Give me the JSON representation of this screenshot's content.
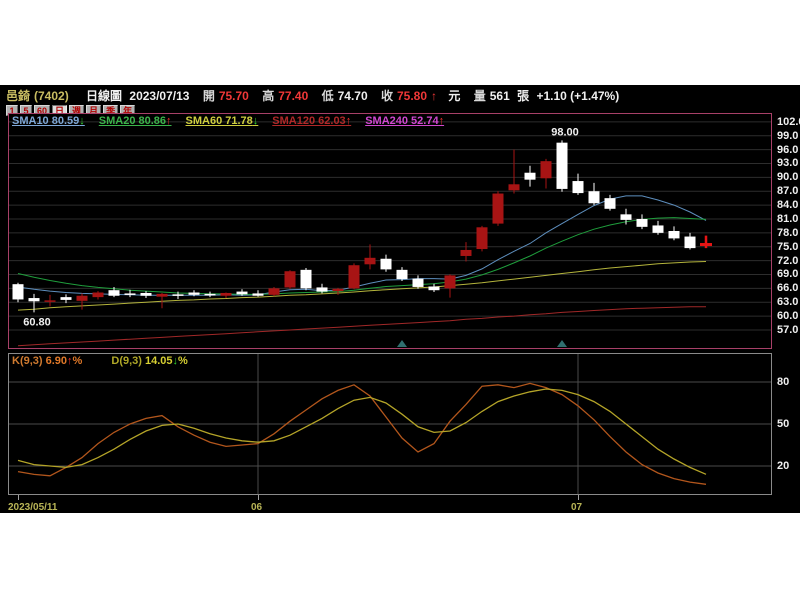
{
  "header": {
    "stock_name": "邑錡",
    "stock_code": "(7402)",
    "chart_type": "日線圖",
    "date": "2023/07/13",
    "open_label": "開",
    "open": "75.70",
    "high_label": "高",
    "high": "77.40",
    "low_label": "低",
    "low": "74.70",
    "close_label": "收",
    "close": "75.80",
    "close_arrow": "↑",
    "unit": "元",
    "volume_label": "量",
    "volume": "561",
    "volume_unit": "張",
    "change": "+1.10 (+1.47%)"
  },
  "toolbar": {
    "buttons": [
      "1",
      "5",
      "60",
      "日",
      "週",
      "月",
      "季",
      "年"
    ],
    "selected": "日"
  },
  "sma_legend": [
    {
      "label": "SMA10",
      "value": "80.59",
      "arrow": "↓",
      "color": "#7fa8d8",
      "arrow_color": "#30d030"
    },
    {
      "label": "SMA20",
      "value": "80.86",
      "arrow": "↑",
      "color": "#3cb44b",
      "arrow_color": "#f03030"
    },
    {
      "label": "SMA60",
      "value": "71.78",
      "arrow": "↓",
      "color": "#cfcf3f",
      "arrow_color": "#30d030"
    },
    {
      "label": "SMA120",
      "value": "62.03",
      "arrow": "↑",
      "color": "#b02828",
      "arrow_color": "#f03030"
    },
    {
      "label": "SMA240",
      "value": "52.74",
      "arrow": "↑",
      "color": "#d048d0",
      "arrow_color": "#f03030"
    }
  ],
  "kd_legend": {
    "k_label": "K(9,3)",
    "k_value": "6.90",
    "k_arrow": "↑",
    "k_pct": "%",
    "k_label_color": "#cf7a2f",
    "k_value_color": "#e07828",
    "d_label": "D(9,3)",
    "d_value": "14.05",
    "d_arrow": "↓",
    "d_pct": "%",
    "d_label_color": "#b0a828",
    "d_value_color": "#d6cf32"
  },
  "chart_data": [
    {
      "type": "candlestick",
      "title": "邑錡(7402) 日線圖",
      "ylim": [
        53.1,
        103.7
      ],
      "yticks": [
        102,
        99,
        96,
        93,
        90,
        87,
        84,
        81,
        78,
        75,
        72,
        69,
        66,
        63,
        60,
        57
      ],
      "grid_color": "#2d2d2d",
      "border_color": "#a84068",
      "candle_up_color": "#a81414",
      "candle_down_color": "#ffffff",
      "today_color": "#e61414",
      "marker_color": "#2f6f6f",
      "x_axis_labels": [
        {
          "label": "2023/05/11",
          "index": 0
        },
        {
          "label": "06",
          "index": 15
        },
        {
          "label": "07",
          "index": 35
        }
      ],
      "annotations": [
        {
          "text": "60.80",
          "index": 1,
          "price": 60.8,
          "pos": "below"
        },
        {
          "text": "98.00",
          "index": 34,
          "price": 98.0,
          "pos": "above"
        }
      ],
      "markers": [
        {
          "index": 24
        },
        {
          "index": 34
        }
      ],
      "candles": [
        {
          "date": "05/11",
          "o": 66.9,
          "h": 67.2,
          "l": 63.0,
          "c": 63.6
        },
        {
          "date": "05/12",
          "o": 63.9,
          "h": 64.8,
          "l": 60.8,
          "c": 63.2
        },
        {
          "date": "05/15",
          "o": 63.4,
          "h": 64.6,
          "l": 62.1,
          "c": 63.4
        },
        {
          "date": "05/16",
          "o": 64.1,
          "h": 64.7,
          "l": 62.8,
          "c": 63.5
        },
        {
          "date": "05/17",
          "o": 63.3,
          "h": 64.9,
          "l": 61.4,
          "c": 64.4
        },
        {
          "date": "05/18",
          "o": 64.1,
          "h": 65.4,
          "l": 63.6,
          "c": 65.1
        },
        {
          "date": "05/19",
          "o": 65.6,
          "h": 66.3,
          "l": 64.1,
          "c": 64.4
        },
        {
          "date": "05/22",
          "o": 64.9,
          "h": 65.7,
          "l": 64.1,
          "c": 64.7
        },
        {
          "date": "05/23",
          "o": 65.0,
          "h": 65.4,
          "l": 63.9,
          "c": 64.4
        },
        {
          "date": "05/24",
          "o": 64.2,
          "h": 65.0,
          "l": 61.7,
          "c": 64.8
        },
        {
          "date": "05/25",
          "o": 64.7,
          "h": 65.3,
          "l": 63.7,
          "c": 64.4
        },
        {
          "date": "05/26",
          "o": 65.1,
          "h": 65.6,
          "l": 64.3,
          "c": 64.6
        },
        {
          "date": "05/29",
          "o": 64.8,
          "h": 65.3,
          "l": 64.1,
          "c": 64.7
        },
        {
          "date": "05/30",
          "o": 64.4,
          "h": 65.1,
          "l": 63.9,
          "c": 65.0
        },
        {
          "date": "05/31",
          "o": 65.3,
          "h": 65.8,
          "l": 64.4,
          "c": 64.7
        },
        {
          "date": "06/01",
          "o": 64.9,
          "h": 65.6,
          "l": 64.2,
          "c": 64.4
        },
        {
          "date": "06/02",
          "o": 64.6,
          "h": 66.3,
          "l": 64.3,
          "c": 66.0
        },
        {
          "date": "06/05",
          "o": 66.2,
          "h": 69.9,
          "l": 65.9,
          "c": 69.7
        },
        {
          "date": "06/06",
          "o": 70.0,
          "h": 70.4,
          "l": 65.6,
          "c": 66.0
        },
        {
          "date": "06/07",
          "o": 66.2,
          "h": 67.0,
          "l": 64.9,
          "c": 65.3
        },
        {
          "date": "06/08",
          "o": 65.4,
          "h": 66.1,
          "l": 64.6,
          "c": 65.9
        },
        {
          "date": "06/09",
          "o": 66.0,
          "h": 71.4,
          "l": 65.8,
          "c": 71.0
        },
        {
          "date": "06/12",
          "o": 71.2,
          "h": 75.5,
          "l": 70.1,
          "c": 72.6
        },
        {
          "date": "06/13",
          "o": 72.4,
          "h": 73.3,
          "l": 69.6,
          "c": 70.1
        },
        {
          "date": "06/14",
          "o": 70.0,
          "h": 70.6,
          "l": 67.6,
          "c": 68.0
        },
        {
          "date": "06/15",
          "o": 68.1,
          "h": 68.8,
          "l": 65.9,
          "c": 66.3
        },
        {
          "date": "06/16",
          "o": 66.4,
          "h": 67.0,
          "l": 65.2,
          "c": 65.6
        },
        {
          "date": "06/19",
          "o": 66.0,
          "h": 69.0,
          "l": 64.0,
          "c": 68.8
        },
        {
          "date": "06/20",
          "o": 73.0,
          "h": 76.0,
          "l": 71.8,
          "c": 74.3
        },
        {
          "date": "06/21",
          "o": 74.5,
          "h": 79.5,
          "l": 74.0,
          "c": 79.2
        },
        {
          "date": "06/26",
          "o": 80.0,
          "h": 87.0,
          "l": 79.5,
          "c": 86.5
        },
        {
          "date": "06/27",
          "o": 87.2,
          "h": 96.0,
          "l": 86.5,
          "c": 88.5
        },
        {
          "date": "06/28",
          "o": 91.0,
          "h": 92.5,
          "l": 88.0,
          "c": 89.5
        },
        {
          "date": "06/29",
          "o": 89.8,
          "h": 94.0,
          "l": 87.6,
          "c": 93.5
        },
        {
          "date": "06/30",
          "o": 97.5,
          "h": 98.0,
          "l": 86.9,
          "c": 87.5
        },
        {
          "date": "07/03",
          "o": 89.2,
          "h": 90.8,
          "l": 86.2,
          "c": 86.6
        },
        {
          "date": "07/04",
          "o": 87.0,
          "h": 88.8,
          "l": 84.0,
          "c": 84.4
        },
        {
          "date": "07/05",
          "o": 85.5,
          "h": 86.2,
          "l": 82.8,
          "c": 83.2
        },
        {
          "date": "07/06",
          "o": 82.0,
          "h": 83.2,
          "l": 79.8,
          "c": 80.8
        },
        {
          "date": "07/07",
          "o": 81.0,
          "h": 82.0,
          "l": 78.8,
          "c": 79.3
        },
        {
          "date": "07/10",
          "o": 79.6,
          "h": 80.6,
          "l": 77.6,
          "c": 78.0
        },
        {
          "date": "07/11",
          "o": 78.4,
          "h": 79.4,
          "l": 76.4,
          "c": 76.8
        },
        {
          "date": "07/12",
          "o": 77.2,
          "h": 78.0,
          "l": 74.4,
          "c": 74.7
        },
        {
          "date": "07/13",
          "o": 75.7,
          "h": 77.4,
          "l": 74.7,
          "c": 75.8,
          "mark": "cross"
        }
      ],
      "sma_lines": [
        {
          "name": "SMA10",
          "color": "#5e8fbe",
          "values": [
            66.3,
            65.8,
            65.4,
            65.1,
            64.9,
            64.8,
            64.7,
            64.6,
            64.5,
            64.5,
            64.5,
            64.5,
            64.5,
            64.6,
            64.5,
            64.6,
            65.2,
            65.7,
            65.8,
            65.5,
            65.6,
            66.3,
            67.1,
            67.8,
            67.9,
            68.1,
            68.1,
            68.0,
            68.8,
            70.2,
            72.2,
            74.0,
            75.7,
            78.0,
            80.0,
            82.0,
            83.9,
            85.3,
            86.0,
            86.0,
            85.1,
            84.0,
            82.5,
            80.7
          ]
        },
        {
          "name": "SMA20",
          "color": "#1f9e3c",
          "values": [
            69.2,
            68.4,
            67.7,
            67.1,
            66.6,
            66.2,
            65.9,
            65.6,
            65.4,
            65.2,
            65.0,
            64.9,
            64.8,
            64.8,
            64.7,
            64.7,
            64.8,
            65.0,
            65.1,
            65.2,
            65.3,
            65.6,
            66.0,
            66.4,
            66.6,
            66.8,
            67.0,
            67.4,
            68.0,
            68.9,
            70.1,
            71.5,
            73.0,
            74.7,
            76.2,
            77.6,
            78.8,
            79.7,
            80.4,
            80.9,
            81.2,
            81.3,
            81.1,
            80.9
          ]
        },
        {
          "name": "SMA60",
          "color": "#b4b43c",
          "values": [
            61.3,
            61.5,
            61.8,
            62.0,
            62.2,
            62.4,
            62.6,
            62.8,
            63.0,
            63.2,
            63.4,
            63.5,
            63.7,
            63.8,
            64.0,
            64.1,
            64.3,
            64.5,
            64.6,
            64.8,
            65.0,
            65.2,
            65.5,
            65.7,
            65.9,
            66.1,
            66.3,
            66.6,
            66.9,
            67.2,
            67.6,
            68.0,
            68.4,
            68.8,
            69.2,
            69.6,
            70.0,
            70.4,
            70.7,
            71.0,
            71.3,
            71.5,
            71.7,
            71.8
          ]
        },
        {
          "name": "SMA120",
          "color": "#a02828",
          "values": [
            53.6,
            53.8,
            54.0,
            54.2,
            54.4,
            54.6,
            54.8,
            55.0,
            55.2,
            55.4,
            55.6,
            55.8,
            56.0,
            56.2,
            56.4,
            56.6,
            56.8,
            57.0,
            57.2,
            57.4,
            57.6,
            57.8,
            58.0,
            58.2,
            58.4,
            58.6,
            58.8,
            59.0,
            59.3,
            59.5,
            59.8,
            60.0,
            60.3,
            60.5,
            60.8,
            61.0,
            61.2,
            61.4,
            61.6,
            61.7,
            61.8,
            61.9,
            62.0,
            62.0
          ]
        },
        {
          "name": "SMA240",
          "color": "#d048d0",
          "values": [
            52.0,
            52.0,
            52.1,
            52.1,
            52.1,
            52.2,
            52.2,
            52.2,
            52.2,
            52.3,
            52.3,
            52.3,
            52.3,
            52.3,
            52.4,
            52.4,
            52.4,
            52.4,
            52.4,
            52.4,
            52.5,
            52.5,
            52.5,
            52.5,
            52.5,
            52.5,
            52.5,
            52.5,
            52.6,
            52.6,
            52.6,
            52.6,
            52.6,
            52.6,
            52.6,
            52.7,
            52.7,
            52.7,
            52.7,
            52.7,
            52.7,
            52.7,
            52.7,
            52.7
          ]
        }
      ]
    },
    {
      "type": "line",
      "title": "KD(9,3)",
      "ylim": [
        0,
        100
      ],
      "yticks": [
        80,
        50,
        20
      ],
      "grid_color": "#4a4a4a",
      "series": [
        {
          "name": "K(9,3)",
          "color": "#b2561c",
          "values": [
            16,
            14,
            13,
            19,
            26,
            36,
            44,
            50,
            54,
            56,
            48,
            42,
            37,
            34,
            35,
            36,
            43,
            52,
            60,
            68,
            74,
            78,
            70,
            55,
            40,
            30,
            36,
            52,
            64,
            77,
            78,
            76,
            79,
            76,
            71,
            63,
            53,
            41,
            30,
            21,
            15,
            11,
            8.5,
            6.9
          ]
        },
        {
          "name": "D(9,3)",
          "color": "#b4a428",
          "values": [
            24,
            21,
            20,
            19,
            21,
            26,
            32,
            39,
            45,
            49,
            50,
            47,
            43,
            40,
            38,
            37,
            38,
            42,
            48,
            54,
            61,
            67,
            69,
            65,
            57,
            48,
            44,
            45,
            51,
            59,
            66,
            70,
            73,
            75,
            74,
            71,
            66,
            59,
            50,
            41,
            32,
            25,
            19,
            14.05
          ]
        }
      ]
    }
  ]
}
